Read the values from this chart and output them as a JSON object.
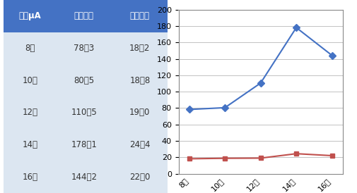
{
  "times": [
    "8時",
    "10時",
    "12時",
    "14時",
    "16時"
  ],
  "horo": [
    78.3,
    80.5,
    110.5,
    178.1,
    144.2
  ],
  "taiyou": [
    18.2,
    18.8,
    19.0,
    24.4,
    22.0
  ],
  "horo_label": "ホロ電池",
  "taiyou_label": "太陽電池",
  "header_col0": "単位μA",
  "header_col1": "ホロ電池",
  "header_col2": "太陽電池",
  "horo_color": "#4472c4",
  "taiyou_color": "#c0504d",
  "header_bg": "#4472c4",
  "row_bg_light": "#dce6f1",
  "row_bg_dark": "#b8cce4",
  "header_text_color": "#ffffff",
  "ylim": [
    0,
    200
  ],
  "yticks": [
    0,
    20,
    40,
    60,
    80,
    100,
    120,
    140,
    160,
    180,
    200
  ],
  "chart_bg": "#ffffff",
  "table_row_values": [
    [
      "8時",
      "78．3",
      "18．2"
    ],
    [
      "10時",
      "80．5",
      "18．8"
    ],
    [
      "12時",
      "110．5",
      "19．0"
    ],
    [
      "14時",
      "178．1",
      "24．4"
    ],
    [
      "16時",
      "144．2",
      "22．0"
    ]
  ]
}
